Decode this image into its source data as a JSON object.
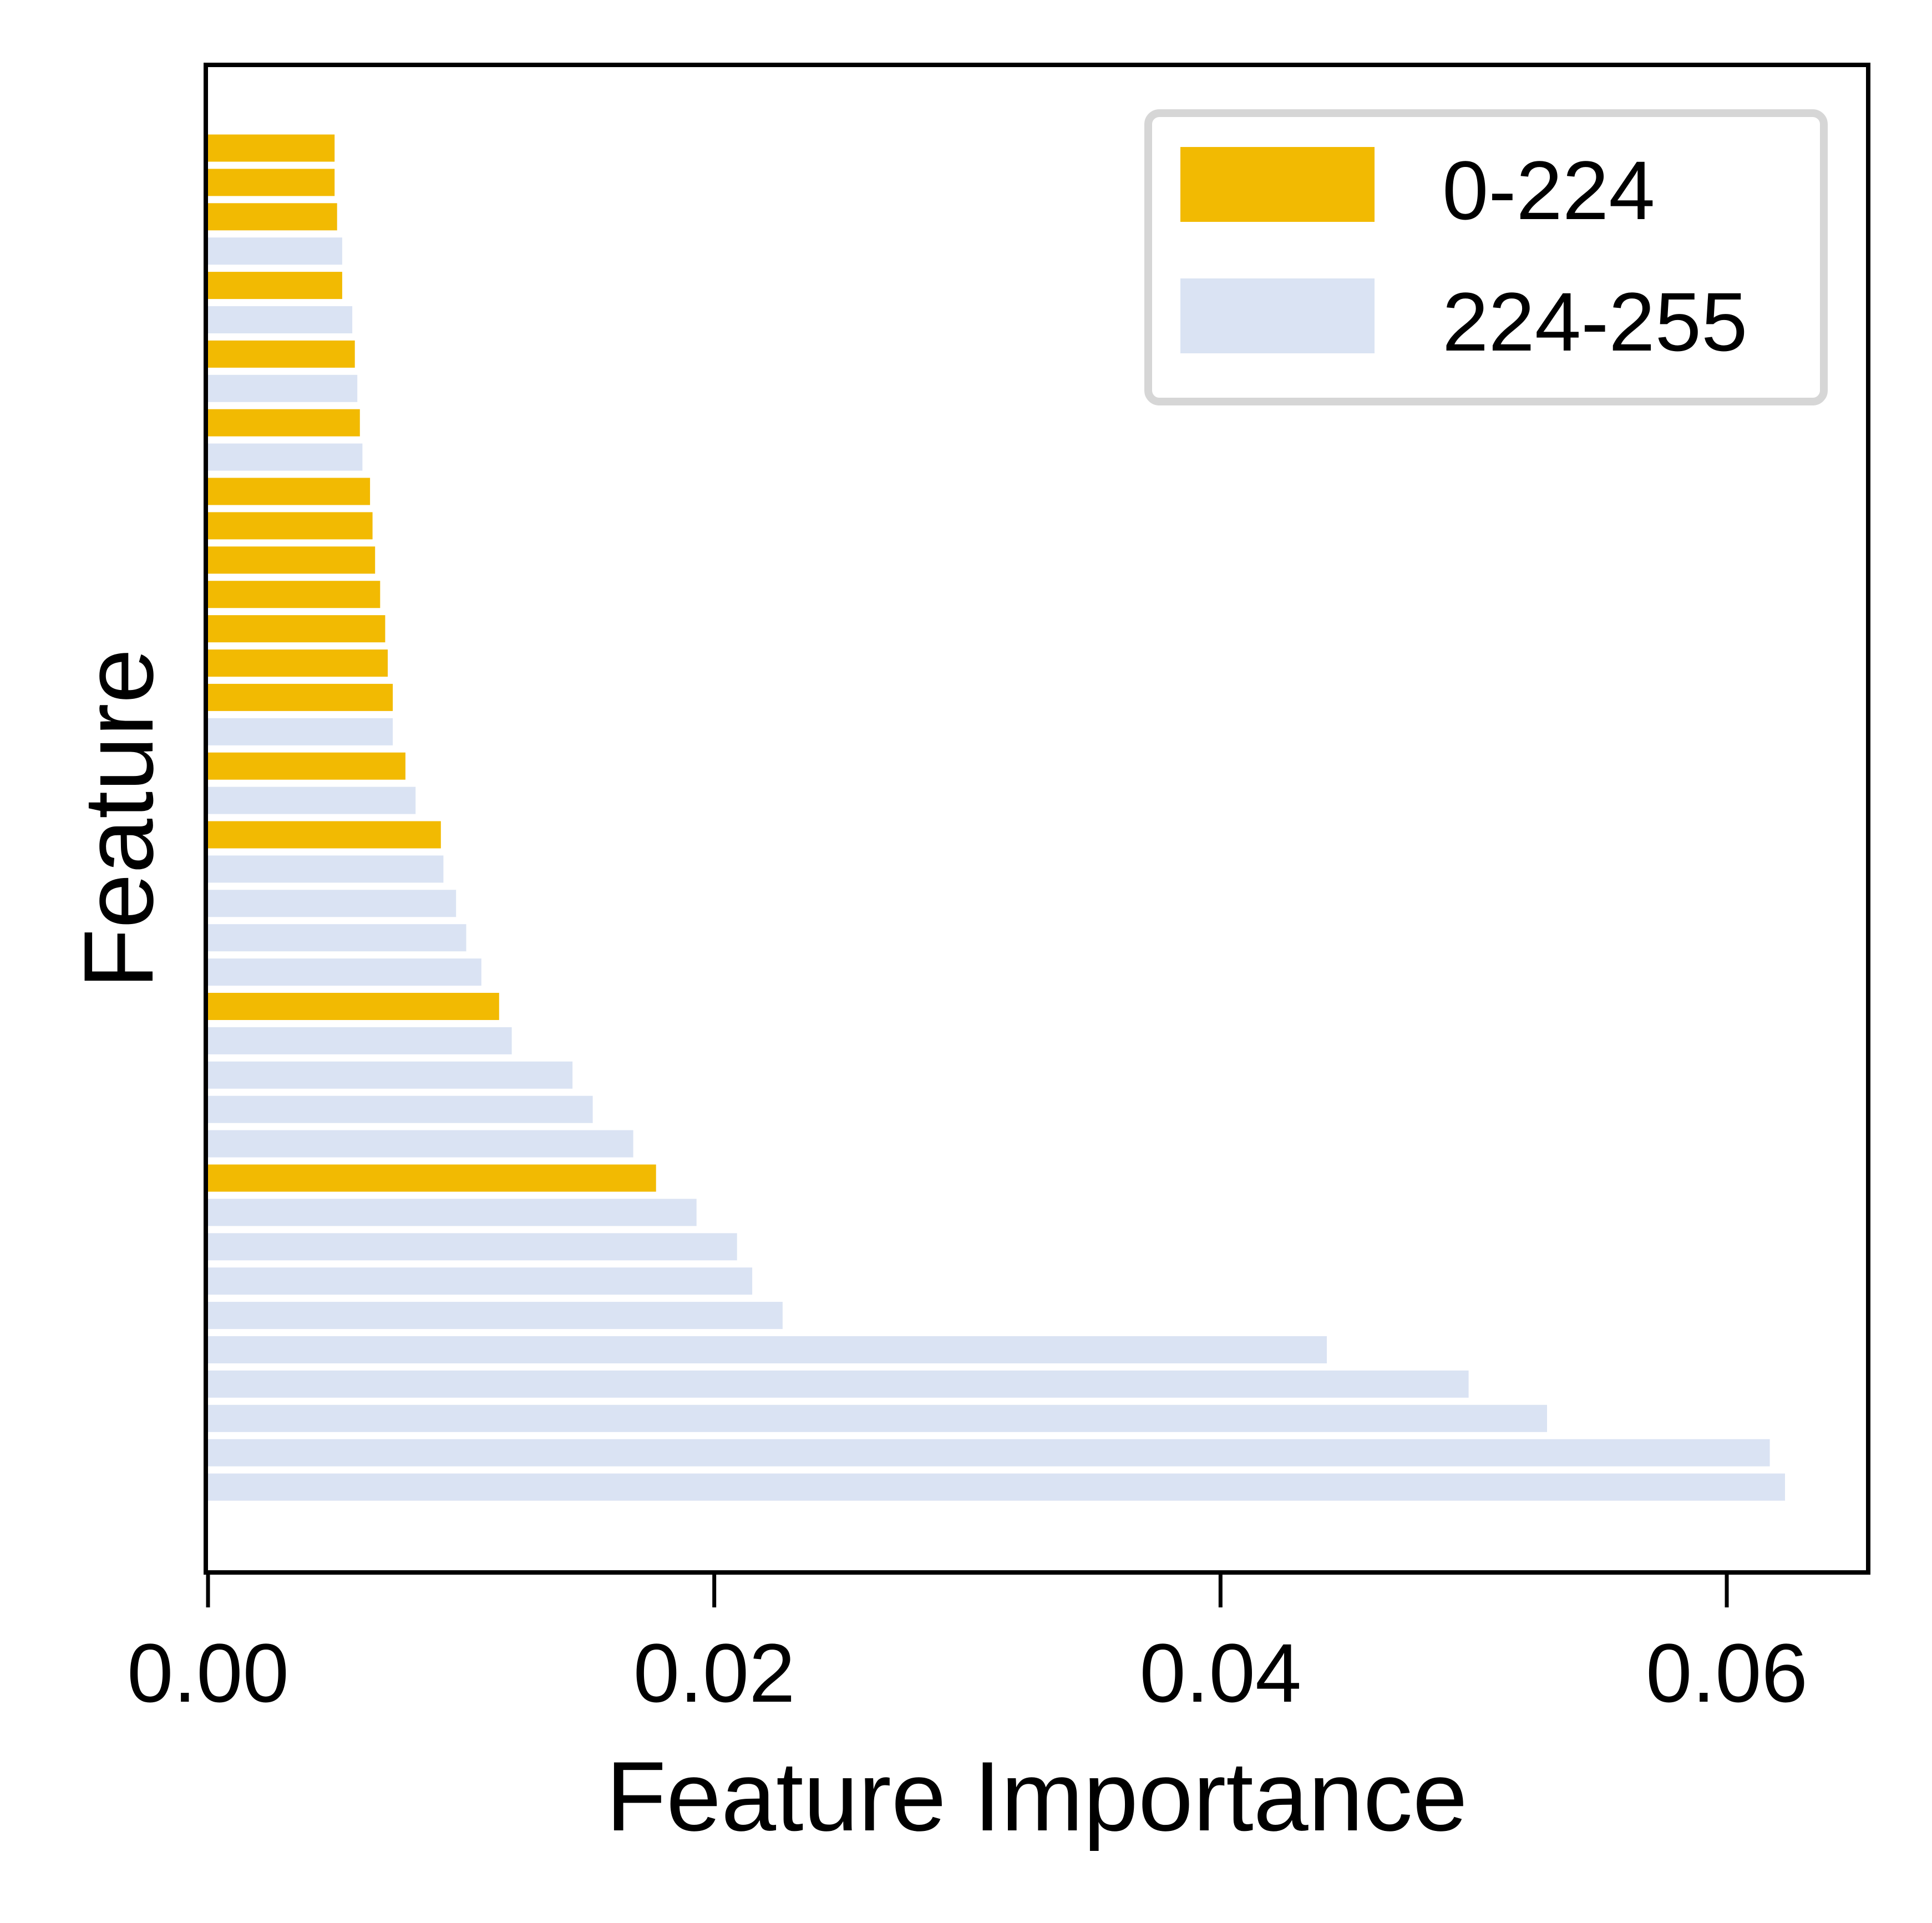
{
  "chart_data": {
    "type": "bar",
    "orientation": "horizontal",
    "xlabel": "Feature Importance",
    "ylabel": "Feature",
    "xlim": [
      0,
      0.0655
    ],
    "xticks": [
      0.0,
      0.02,
      0.04,
      0.06
    ],
    "xtick_labels": [
      "0.00",
      "0.02",
      "0.04",
      "0.06"
    ],
    "grid": false,
    "legend": {
      "position": "top-right",
      "entries": [
        {
          "label": "0-224",
          "color": "#F2BA02"
        },
        {
          "label": "224-255",
          "color": "#DAE3F3"
        }
      ]
    },
    "bars": [
      {
        "group": "0-224",
        "value": 0.005
      },
      {
        "group": "0-224",
        "value": 0.005
      },
      {
        "group": "0-224",
        "value": 0.0051
      },
      {
        "group": "224-255",
        "value": 0.0053
      },
      {
        "group": "0-224",
        "value": 0.0053
      },
      {
        "group": "224-255",
        "value": 0.0057
      },
      {
        "group": "0-224",
        "value": 0.0058
      },
      {
        "group": "224-255",
        "value": 0.0059
      },
      {
        "group": "0-224",
        "value": 0.006
      },
      {
        "group": "224-255",
        "value": 0.0061
      },
      {
        "group": "0-224",
        "value": 0.0064
      },
      {
        "group": "0-224",
        "value": 0.0065
      },
      {
        "group": "0-224",
        "value": 0.0066
      },
      {
        "group": "0-224",
        "value": 0.0068
      },
      {
        "group": "0-224",
        "value": 0.007
      },
      {
        "group": "0-224",
        "value": 0.0071
      },
      {
        "group": "0-224",
        "value": 0.0073
      },
      {
        "group": "224-255",
        "value": 0.0073
      },
      {
        "group": "0-224",
        "value": 0.0078
      },
      {
        "group": "224-255",
        "value": 0.0082
      },
      {
        "group": "0-224",
        "value": 0.0092
      },
      {
        "group": "224-255",
        "value": 0.0093
      },
      {
        "group": "224-255",
        "value": 0.0098
      },
      {
        "group": "224-255",
        "value": 0.0102
      },
      {
        "group": "224-255",
        "value": 0.0108
      },
      {
        "group": "0-224",
        "value": 0.0115
      },
      {
        "group": "224-255",
        "value": 0.012
      },
      {
        "group": "224-255",
        "value": 0.0144
      },
      {
        "group": "224-255",
        "value": 0.0152
      },
      {
        "group": "224-255",
        "value": 0.0168
      },
      {
        "group": "0-224",
        "value": 0.0177
      },
      {
        "group": "224-255",
        "value": 0.0193
      },
      {
        "group": "224-255",
        "value": 0.0209
      },
      {
        "group": "224-255",
        "value": 0.0215
      },
      {
        "group": "224-255",
        "value": 0.0227
      },
      {
        "group": "224-255",
        "value": 0.0442
      },
      {
        "group": "224-255",
        "value": 0.0498
      },
      {
        "group": "224-255",
        "value": 0.0529
      },
      {
        "group": "224-255",
        "value": 0.0617
      },
      {
        "group": "224-255",
        "value": 0.0623
      }
    ]
  }
}
